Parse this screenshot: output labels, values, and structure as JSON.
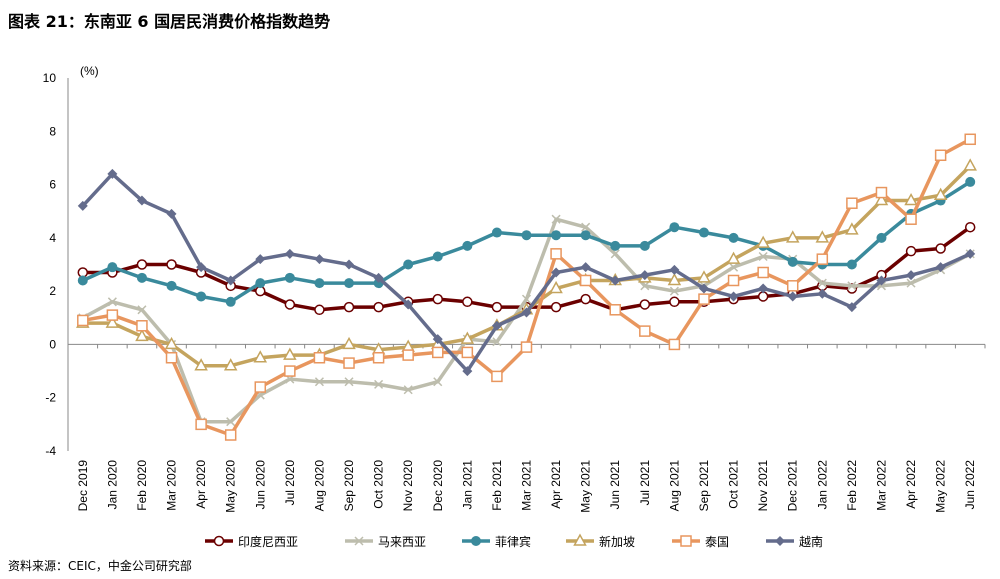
{
  "title": "图表 21：东南亚 6 国居民消费价格指数趋势",
  "source": "资料来源：CEIC，中金公司研究部",
  "chart_data": {
    "type": "line",
    "title": "图表 21：东南亚 6 国居民消费价格指数趋势",
    "ylabel": "(%)",
    "xlabel": "",
    "ylim": [
      -4,
      10
    ],
    "yticks": [
      -4,
      -2,
      0,
      2,
      4,
      6,
      8,
      10
    ],
    "grid": false,
    "legend": "bottom",
    "categories": [
      "Dec 2019",
      "Jan 2020",
      "Feb 2020",
      "Mar 2020",
      "Apr 2020",
      "May 2020",
      "Jun 2020",
      "Jul 2020",
      "Aug 2020",
      "Sep 2020",
      "Oct 2020",
      "Nov 2020",
      "Dec 2020",
      "Jan 2021",
      "Feb 2021",
      "Mar 2021",
      "Apr 2021",
      "May 2021",
      "Jun 2021",
      "Jul 2021",
      "Aug 2021",
      "Sep 2021",
      "Oct 2021",
      "Nov 2021",
      "Dec 2021",
      "Jan 2022",
      "Feb 2022",
      "Mar 2022",
      "Apr 2022",
      "May 2022",
      "Jun 2022"
    ],
    "series": [
      {
        "name": "印度尼西亚",
        "color": "#6B0000",
        "marker": "circle",
        "values": [
          2.7,
          2.7,
          3.0,
          3.0,
          2.7,
          2.2,
          2.0,
          1.5,
          1.3,
          1.4,
          1.4,
          1.6,
          1.7,
          1.6,
          1.4,
          1.4,
          1.4,
          1.7,
          1.3,
          1.5,
          1.6,
          1.6,
          1.7,
          1.8,
          1.9,
          2.2,
          2.1,
          2.6,
          3.5,
          3.6,
          4.4
        ]
      },
      {
        "name": "马来西亚",
        "color": "#BDBDAD",
        "marker": "cross",
        "values": [
          1.0,
          1.6,
          1.3,
          0.0,
          -2.9,
          -2.9,
          -1.9,
          -1.3,
          -1.4,
          -1.4,
          -1.5,
          -1.7,
          -1.4,
          0.2,
          0.1,
          1.7,
          4.7,
          4.4,
          3.4,
          2.2,
          2.0,
          2.2,
          2.9,
          3.3,
          3.2,
          2.3,
          2.2,
          2.2,
          2.3,
          2.8,
          3.4
        ]
      },
      {
        "name": "菲律宾",
        "color": "#3A8A9C",
        "marker": "dot",
        "values": [
          2.4,
          2.9,
          2.5,
          2.2,
          1.8,
          1.6,
          2.3,
          2.5,
          2.3,
          2.3,
          2.3,
          3.0,
          3.3,
          3.7,
          4.2,
          4.1,
          4.1,
          4.1,
          3.7,
          3.7,
          4.4,
          4.2,
          4.0,
          3.7,
          3.1,
          3.0,
          3.0,
          4.0,
          4.9,
          5.4,
          6.1
        ]
      },
      {
        "name": "新加坡",
        "color": "#C4A45E",
        "marker": "triangle",
        "values": [
          0.8,
          0.8,
          0.3,
          0.0,
          -0.8,
          -0.8,
          -0.5,
          -0.4,
          -0.4,
          0.0,
          -0.2,
          -0.1,
          0.0,
          0.2,
          0.7,
          1.3,
          2.1,
          2.4,
          2.4,
          2.5,
          2.4,
          2.5,
          3.2,
          3.8,
          4.0,
          4.0,
          4.3,
          5.4,
          5.4,
          5.6,
          6.7
        ]
      },
      {
        "name": "泰国",
        "color": "#E8965E",
        "marker": "square",
        "values": [
          0.9,
          1.1,
          0.7,
          -0.5,
          -3.0,
          -3.4,
          -1.6,
          -1.0,
          -0.5,
          -0.7,
          -0.5,
          -0.4,
          -0.3,
          -0.3,
          -1.2,
          -0.1,
          3.4,
          2.4,
          1.3,
          0.5,
          0.0,
          1.7,
          2.4,
          2.7,
          2.2,
          3.2,
          5.3,
          5.7,
          4.7,
          7.1,
          7.7
        ]
      },
      {
        "name": "越南",
        "color": "#646C8C",
        "marker": "diamond",
        "values": [
          5.2,
          6.4,
          5.4,
          4.9,
          2.9,
          2.4,
          3.2,
          3.4,
          3.2,
          3.0,
          2.5,
          1.5,
          0.2,
          -1.0,
          0.7,
          1.2,
          2.7,
          2.9,
          2.4,
          2.6,
          2.8,
          2.1,
          1.8,
          2.1,
          1.8,
          1.9,
          1.4,
          2.4,
          2.6,
          2.9,
          3.4
        ]
      }
    ]
  }
}
